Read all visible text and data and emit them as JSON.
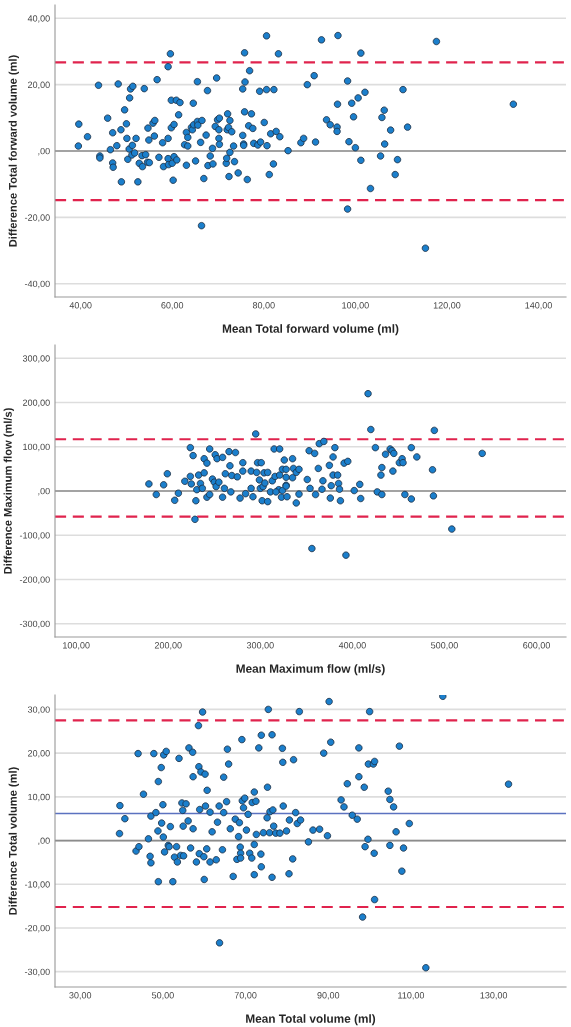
{
  "chart_data": [
    {
      "type": "scatter",
      "xlabel": "Mean Total forward volume (ml)",
      "ylabel": "Difference Total forward volume (ml)",
      "color": "#1b7fcc",
      "marker": "circle",
      "grid": "y",
      "xlim": [
        34.4,
        146
      ],
      "ylim": [
        -44,
        44
      ],
      "xticks": [
        {
          "value": 40,
          "label": "40,00"
        },
        {
          "value": 60,
          "label": "60,00"
        },
        {
          "value": 80,
          "label": "80,00"
        },
        {
          "value": 100,
          "label": "100,00"
        },
        {
          "value": 120,
          "label": "120,00"
        },
        {
          "value": 140,
          "label": "140,00"
        }
      ],
      "yticks": [
        {
          "value": -40,
          "label": "-40,00"
        },
        {
          "value": -20,
          "label": "-20,00"
        },
        {
          "value": 0,
          "label": ",00"
        },
        {
          "value": 20,
          "label": "20,00"
        },
        {
          "value": 40,
          "label": "40,00"
        }
      ],
      "ref_lines": [
        {
          "axis": "y",
          "value": 0,
          "color": "#8c8c8c",
          "line_style": "solid"
        },
        {
          "axis": "y",
          "value": 26.7,
          "color": "#e0234d",
          "line_style": "dashed"
        },
        {
          "axis": "y",
          "value": -14.8,
          "color": "#e0234d",
          "line_style": "dashed"
        }
      ],
      "x": [
        39.6,
        39.5,
        41.5,
        43.9,
        44.2,
        44.2,
        45.9,
        46.5,
        47.0,
        47.1,
        47.0,
        47.9,
        48.2,
        48.8,
        48.9,
        49.6,
        50.0,
        50.1,
        50.3,
        50.6,
        50.7,
        50.9,
        51.4,
        51.3,
        51.2,
        51.8,
        52.1,
        52.5,
        52.8,
        53.4,
        53.5,
        53.9,
        54.2,
        54.6,
        54.7,
        54.9,
        55.0,
        55.8,
        56.1,
        56.2,
        56.7,
        57.1,
        57.9,
        58.1,
        59.1,
        59.1,
        59.1,
        59.2,
        59.6,
        59.8,
        59.8,
        60.0,
        60.2,
        60.4,
        60.4,
        60.9,
        61.0,
        61.4,
        61.7,
        62.7,
        63.1,
        63.1,
        63.4,
        63.4,
        64.2,
        64.4,
        64.6,
        64.7,
        65.1,
        65.5,
        65.5,
        65.6,
        66.2,
        66.4,
        66.5,
        66.9,
        67.4,
        67.7,
        67.8,
        68.3,
        68.8,
        68.9,
        69.4,
        69.7,
        69.9,
        70.2,
        70.2,
        70.3,
        70.3,
        71.8,
        71.9,
        72.0,
        72.1,
        72.3,
        72.4,
        72.6,
        72.6,
        73.0,
        73.4,
        73.6,
        74.4,
        75.4,
        75.4,
        75.6,
        75.6,
        75.8,
        75.8,
        75.9,
        76.4,
        76.7,
        76.9,
        77.3,
        77.6,
        77.8,
        78.7,
        79.1,
        79.3,
        80.1,
        80.6,
        80.6,
        80.7,
        81.2,
        81.5,
        82.1,
        82.2,
        82.7,
        83.2,
        83.5,
        85.3,
        88.1,
        88.7,
        89.5,
        91.0,
        91.3,
        92.6,
        93.7,
        94.5,
        96.0,
        96.0,
        96.1,
        96.2,
        98.3,
        98.3,
        98.6,
        99.2,
        99.6,
        100.0,
        100.6,
        101.2,
        101.2,
        102.1,
        103.3,
        105.5,
        105.8,
        106.3,
        106.4,
        107.7,
        108.7,
        109.2,
        110.4,
        111.4,
        115.3,
        117.7,
        134.5
      ],
      "values": [
        8.1,
        1.5,
        4.3,
        19.8,
        -1.5,
        -2.1,
        9.9,
        0.4,
        -3.6,
        -4.9,
        5.5,
        1.6,
        20.2,
        6.4,
        -9.3,
        12.4,
        8.2,
        3.8,
        -2.5,
        0.6,
        16.0,
        18.7,
        19.5,
        1.7,
        -1.2,
        -0.6,
        3.8,
        -9.3,
        -3.7,
        -1.4,
        -4.7,
        18.8,
        -1.1,
        -3.4,
        6.9,
        3.3,
        -3.5,
        8.4,
        4.5,
        9.2,
        21.5,
        -1.9,
        2.5,
        -4.7,
        3.8,
        25.4,
        -2.3,
        -4.1,
        29.3,
        15.3,
        7.0,
        -3.7,
        -8.8,
        8.0,
        -1.7,
        15.3,
        -2.7,
        10.9,
        14.6,
        1.9,
        5.6,
        -4.3,
        4.1,
        1.5,
        7.1,
        6.4,
        14.4,
        7.9,
        -3.0,
        8.9,
        20.9,
        7.8,
        2.6,
        -22.5,
        9.2,
        -8.3,
        4.8,
        18.2,
        -4.4,
        -1.5,
        0.8,
        -3.9,
        7.4,
        22.0,
        9.4,
        6.4,
        3.8,
        2.0,
        9.9,
        -3.7,
        -2.2,
        6.4,
        11.2,
        7.1,
        -7.7,
        9.2,
        -0.4,
        5.8,
        1.5,
        -3.2,
        -6.6,
        18.7,
        4.7,
        2.1,
        1.7,
        29.6,
        11.8,
        20.8,
        -8.6,
        7.6,
        24.2,
        11.2,
        6.8,
        2.3,
        1.8,
        18.0,
        2.7,
        8.6,
        34.7,
        18.5,
        1.6,
        -7.1,
        5.2,
        -3.9,
        18.5,
        5.9,
        29.3,
        4.3,
        0.1,
        2.5,
        3.8,
        20.0,
        22.7,
        2.7,
        33.5,
        9.4,
        7.9,
        7.2,
        5.9,
        14.1,
        34.8,
        21.1,
        -17.5,
        2.8,
        14.4,
        10.3,
        1.0,
        16.0,
        29.5,
        -2.8,
        17.7,
        -11.3,
        -1.5,
        10.1,
        12.3,
        2.1,
        6.3,
        -7.1,
        -2.6,
        18.5,
        7.2,
        -29.3,
        33.0,
        14.1
      ]
    },
    {
      "type": "scatter",
      "xlabel": "Mean Maximum flow (ml/s)",
      "ylabel": "Difference Maximum flow (ml/s)",
      "color": "#1b7fcc",
      "marker": "circle",
      "grid": "y",
      "xlim": [
        77,
        632
      ],
      "ylim": [
        -330,
        330
      ],
      "xticks": [
        {
          "value": 100,
          "label": "100,00"
        },
        {
          "value": 200,
          "label": "200,00"
        },
        {
          "value": 300,
          "label": "300,00"
        },
        {
          "value": 400,
          "label": "400,00"
        },
        {
          "value": 500,
          "label": "500,00"
        },
        {
          "value": 600,
          "label": "600,00"
        }
      ],
      "yticks": [
        {
          "value": -300,
          "label": "-300,00"
        },
        {
          "value": -200,
          "label": "-200,00"
        },
        {
          "value": -100,
          "label": "-100,00"
        },
        {
          "value": 0,
          "label": ",00"
        },
        {
          "value": 100,
          "label": "100,00"
        },
        {
          "value": 200,
          "label": "200,00"
        },
        {
          "value": 300,
          "label": "300,00"
        }
      ],
      "ref_lines": [
        {
          "axis": "y",
          "value": 0,
          "color": "#8c8c8c",
          "line_style": "solid"
        },
        {
          "axis": "y",
          "value": 117,
          "color": "#e0234d",
          "line_style": "dashed"
        },
        {
          "axis": "y",
          "value": -58,
          "color": "#e0234d",
          "line_style": "dashed"
        }
      ],
      "x": [
        179,
        187,
        195,
        199,
        207,
        211,
        218,
        224,
        224,
        225,
        227,
        230,
        229,
        231,
        233,
        235,
        237,
        239,
        239,
        242,
        242,
        245,
        245,
        248,
        250,
        251,
        252,
        253,
        255,
        259,
        259,
        261,
        262,
        266,
        267,
        268,
        269,
        273,
        275,
        278,
        281,
        281,
        284,
        290,
        290,
        292,
        295,
        296,
        297,
        299,
        300,
        301,
        302,
        303,
        304,
        305,
        308,
        308,
        311,
        313,
        315,
        316,
        320,
        323,
        324,
        326,
        328,
        328,
        317,
        321,
        321,
        324,
        328,
        328,
        329,
        335,
        335,
        336,
        339,
        339,
        342,
        342,
        351,
        353,
        354,
        356,
        359,
        360,
        363,
        364,
        369,
        368,
        367,
        375,
        376,
        377,
        379,
        379,
        381,
        384,
        385,
        386,
        387,
        391,
        393,
        395,
        402,
        408,
        409,
        417,
        420,
        425,
        427,
        431,
        432,
        432,
        436,
        441,
        443,
        444,
        445,
        451,
        454,
        455,
        457,
        464,
        464,
        470,
        487,
        489,
        488,
        508,
        541
      ],
      "values": [
        16,
        -8,
        14,
        39,
        -21,
        -5,
        22,
        98,
        33,
        16,
        80,
        -22,
        -64,
        3,
        36,
        17,
        6,
        73,
        41,
        63,
        -14,
        95,
        -8,
        27,
        20,
        82,
        10,
        73,
        20,
        -14,
        76,
        6,
        39,
        89,
        57,
        -2,
        35,
        87,
        32,
        -16,
        64,
        45,
        -6,
        45,
        6,
        -13,
        129,
        42,
        64,
        25,
        6,
        64,
        -22,
        10,
        41,
        18,
        42,
        -24,
        -2,
        23,
        95,
        33,
        3,
        -14,
        49,
        70,
        31,
        13,
        -2,
        95,
        36,
        1,
        11,
        49,
        -13,
        73,
        30,
        51,
        -27,
        42,
        49,
        -7,
        26,
        91,
        6,
        -130,
        85,
        -8,
        51,
        107,
        112,
        23,
        4,
        58,
        -16,
        12,
        77,
        36,
        98,
        36,
        17,
        4,
        -22,
        63,
        -145,
        67,
        1,
        15,
        -17,
        220,
        139,
        98,
        -2,
        36,
        53,
        -8,
        83,
        95,
        91,
        45,
        85,
        64,
        73,
        64,
        -8,
        -18,
        98,
        77,
        48,
        137,
        -11,
        -86,
        85
      ]
    },
    {
      "type": "scatter",
      "xlabel": "Mean Total volume (ml)",
      "ylabel": "Difference Total volume (ml)",
      "color": "#1b7fcc",
      "marker": "circle",
      "grid": "y",
      "xlim": [
        23.9,
        147.5
      ],
      "ylim": [
        -33.5,
        33.3
      ],
      "xticks": [
        {
          "value": 30,
          "label": "30,00"
        },
        {
          "value": 50,
          "label": "50,00"
        },
        {
          "value": 70,
          "label": "70,00"
        },
        {
          "value": 90,
          "label": "90,00"
        },
        {
          "value": 110,
          "label": "110,00"
        },
        {
          "value": 130,
          "label": "130,00"
        }
      ],
      "yticks": [
        {
          "value": -30,
          "label": "-30,00"
        },
        {
          "value": -20,
          "label": "-20,00"
        },
        {
          "value": -10,
          "label": "-10,00"
        },
        {
          "value": 0,
          "label": ",00"
        },
        {
          "value": 10,
          "label": "10,00"
        },
        {
          "value": 20,
          "label": "20,00"
        },
        {
          "value": 30,
          "label": "30,00"
        }
      ],
      "ref_lines": [
        {
          "axis": "y",
          "value": 0,
          "color": "#8c8c8c",
          "line_style": "solid"
        },
        {
          "axis": "y",
          "value": 6.2,
          "color": "#5b72c0",
          "line_style": "solid"
        },
        {
          "axis": "y",
          "value": 27.5,
          "color": "#e0234d",
          "line_style": "dashed"
        },
        {
          "axis": "y",
          "value": -15.2,
          "color": "#e0234d",
          "line_style": "dashed"
        }
      ],
      "x": [
        39.6,
        39.5,
        40.8,
        43.5,
        44.0,
        44.2,
        45.3,
        46.5,
        46.9,
        47.1,
        47.1,
        47.8,
        48.3,
        48.9,
        48.8,
        48.9,
        49.6,
        49.7,
        50.0,
        50.1,
        50.2,
        50.4,
        50.8,
        51.3,
        51.5,
        51.8,
        52.4,
        52.8,
        53.3,
        53.5,
        53.9,
        54.3,
        54.6,
        54.8,
        54.9,
        55.0,
        55.6,
        56.1,
        56.3,
        56.7,
        57.2,
        57.3,
        57.3,
        58.1,
        58.6,
        58.7,
        58.8,
        58.9,
        59.2,
        59.6,
        59.9,
        60.0,
        60.2,
        60.3,
        60.6,
        60.7,
        61.4,
        61.4,
        61.9,
        62.9,
        63.2,
        63.6,
        63.7,
        64.4,
        64.7,
        64.7,
        65.4,
        65.6,
        65.9,
        66.3,
        67.0,
        67.5,
        67.9,
        68.3,
        68.5,
        68.7,
        68.8,
        68.8,
        69.1,
        69.2,
        69.5,
        69.8,
        70.2,
        70.6,
        71.0,
        71.5,
        71.6,
        72.1,
        72.1,
        72.1,
        72.5,
        72.6,
        73.2,
        73.7,
        73.8,
        73.8,
        74.3,
        75.2,
        75.3,
        75.5,
        75.8,
        75.9,
        76.4,
        76.4,
        76.6,
        76.8,
        77.3,
        78.3,
        78.9,
        79.0,
        79.1,
        79.9,
        80.5,
        80.6,
        81.6,
        81.4,
        82.1,
        82.5,
        83.0,
        83.3,
        85.2,
        86.3,
        87.9,
        88.9,
        89.8,
        90.2,
        90.6,
        93.1,
        93.8,
        94.6,
        95.8,
        97.0,
        97.4,
        97.4,
        98.3,
        98.7,
        98.9,
        99.6,
        99.7,
        100.0,
        100.9,
        101.1,
        101.2,
        101.2,
        104.5,
        104.9,
        104.9,
        105.8,
        106.4,
        107.2,
        107.8,
        108.2,
        109.6,
        113.6,
        117.7,
        133.6
      ],
      "values": [
        8.0,
        1.6,
        5.0,
        -2.4,
        19.9,
        -1.4,
        10.6,
        0.4,
        -3.6,
        -5.1,
        5.6,
        19.9,
        6.4,
        13.5,
        2.2,
        -9.4,
        16.7,
        4.0,
        8.2,
        0.8,
        19.6,
        -2.6,
        20.4,
        -1.1,
        -1.4,
        3.2,
        -9.4,
        -3.8,
        -1.4,
        -4.9,
        18.8,
        -3.4,
        8.6,
        6.9,
        3.3,
        -3.5,
        8.4,
        4.5,
        21.2,
        -1.7,
        20.2,
        14.6,
        2.7,
        -4.9,
        26.3,
        16.9,
        -3.0,
        7.1,
        15.7,
        29.4,
        -3.7,
        -8.9,
        15.2,
        7.9,
        -1.9,
        11.5,
        -4.9,
        6.5,
        2.0,
        -4.4,
        4.2,
        7.9,
        -23.4,
        -2.1,
        6.4,
        14.5,
        8.9,
        20.9,
        17.5,
        2.7,
        -8.2,
        4.9,
        -4.3,
        0.9,
        4.1,
        -1.5,
        -2.9,
        -4.0,
        23.1,
        9.1,
        7.5,
        9.7,
        2.4,
        6.0,
        -2.9,
        -4.0,
        8.7,
        -7.8,
        -0.9,
        11.1,
        9.0,
        1.4,
        21.2,
        -3.1,
        -6.0,
        24.1,
        1.8,
        5.2,
        12.2,
        30.0,
        1.8,
        6.6,
        -8.4,
        24.2,
        7.0,
        3.3,
        1.7,
        1.7,
        21.1,
        17.9,
        7.9,
        2.2,
        -7.6,
        4.7,
        18.5,
        -4.2,
        6.4,
        3.9,
        29.5,
        4.7,
        -0.3,
        2.4,
        2.6,
        20.0,
        1.1,
        31.8,
        22.5,
        9.3,
        7.7,
        13.0,
        5.8,
        4.9,
        21.2,
        14.6,
        -17.5,
        12.2,
        -1.4,
        0.3,
        17.5,
        29.5,
        17.5,
        -2.9,
        18.1,
        -13.5,
        11.3,
        9.4,
        -1.1,
        7.7,
        2.0,
        21.6,
        -7.0,
        -1.7,
        3.9,
        -29.1,
        33.0,
        12.9
      ]
    }
  ]
}
